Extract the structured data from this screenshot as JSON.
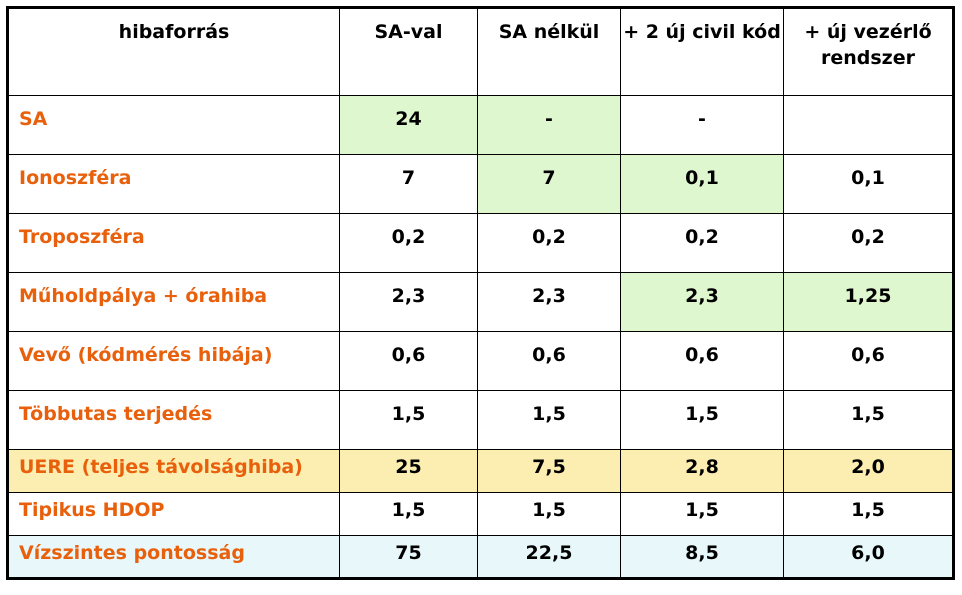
{
  "table": {
    "headers": [
      "hibaforrás",
      "SA-val",
      "SA nélkül",
      "+ 2 új civil kód",
      "+ új vezérlő rendszer"
    ],
    "rows": [
      {
        "label": "SA",
        "values": [
          "24",
          "-",
          "-",
          ""
        ]
      },
      {
        "label": "Ionoszféra",
        "values": [
          "7",
          "7",
          "0,1",
          "0,1"
        ]
      },
      {
        "label": "Troposzféra",
        "values": [
          "0,2",
          "0,2",
          "0,2",
          "0,2"
        ]
      },
      {
        "label": "Műholdpálya + órahiba",
        "values": [
          "2,3",
          "2,3",
          "2,3",
          "1,25"
        ]
      },
      {
        "label": "Vevő (kódmérés hibája)",
        "values": [
          "0,6",
          "0,6",
          "0,6",
          "0,6"
        ]
      },
      {
        "label": "Többutas terjedés",
        "values": [
          "1,5",
          "1,5",
          "1,5",
          "1,5"
        ]
      },
      {
        "label": "UERE (teljes távolsághiba)",
        "values": [
          "25",
          "7,5",
          "2,8",
          "2,0"
        ]
      },
      {
        "label": "Tipikus HDOP",
        "values": [
          "1,5",
          "1,5",
          "1,5",
          "1,5"
        ]
      },
      {
        "label": "Vízszintes pontosság",
        "values": [
          "75",
          "22,5",
          "8,5",
          "6,0"
        ]
      }
    ]
  },
  "colors": {
    "label_text": "#e8600c",
    "highlight_green": "#dff7cf",
    "highlight_yellow": "#fcedb0",
    "highlight_cyan": "#e8f7f9"
  }
}
